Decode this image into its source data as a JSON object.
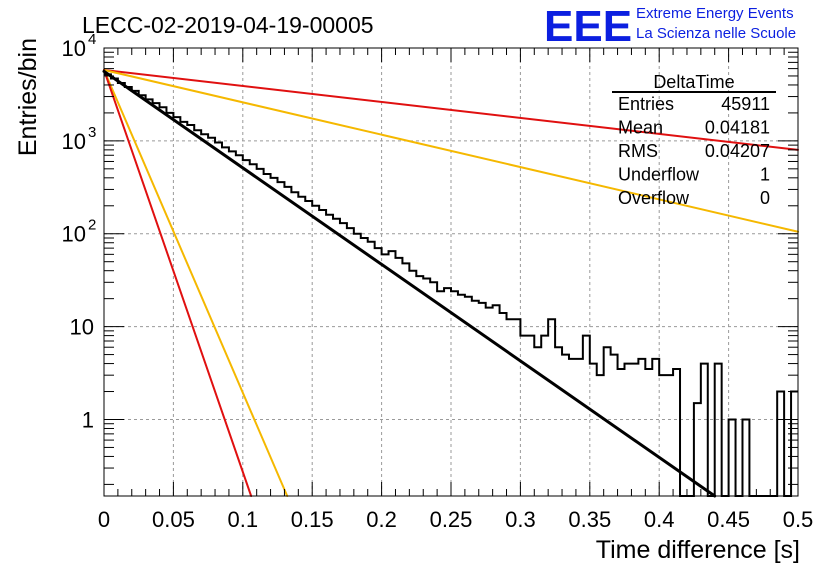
{
  "header": {
    "run_title": "LECC-02-2019-04-19-00005",
    "logo_letters": "EEE",
    "logo_line1": "Extreme Energy Events",
    "logo_line2": "La Scienza nelle Scuole",
    "logo_color": "#0b1fe0"
  },
  "stats": {
    "title": "DeltaTime",
    "rows": [
      {
        "label": "Entries",
        "value": "45911"
      },
      {
        "label": "Mean",
        "value": "0.04181"
      },
      {
        "label": "RMS",
        "value": "0.04207"
      },
      {
        "label": "Underflow",
        "value": "1"
      },
      {
        "label": "Overflow",
        "value": "0"
      }
    ]
  },
  "chart_data": {
    "type": "line",
    "xlabel": "Time difference [s]",
    "ylabel": "Entries/bin",
    "xlim": [
      0,
      0.5
    ],
    "ylim": [
      0.15,
      10000
    ],
    "yscale": "log",
    "grid": true,
    "x_ticks": [
      "0",
      "0.05",
      "0.1",
      "0.15",
      "0.2",
      "0.25",
      "0.3",
      "0.35",
      "0.4",
      "0.45",
      "0.5"
    ],
    "y_ticks": [
      {
        "value": 1,
        "label": "1"
      },
      {
        "value": 10,
        "label": "10"
      },
      {
        "value": 100,
        "label": "10",
        "exp": "2"
      },
      {
        "value": 1000,
        "label": "10",
        "exp": "3"
      },
      {
        "value": 10000,
        "label": "10",
        "exp": "4"
      }
    ],
    "histogram": {
      "color": "#000000",
      "bin_width": 0.005,
      "values": [
        5200,
        4700,
        4200,
        3800,
        3450,
        3100,
        2800,
        2550,
        2300,
        2000,
        1800,
        1600,
        1480,
        1300,
        1180,
        1080,
        960,
        850,
        770,
        700,
        620,
        560,
        500,
        440,
        400,
        360,
        320,
        280,
        250,
        225,
        200,
        180,
        160,
        145,
        130,
        115,
        100,
        90,
        82,
        70,
        60,
        65,
        55,
        48,
        40,
        35,
        33,
        30,
        24,
        26,
        24,
        22,
        21,
        19,
        18,
        16,
        17,
        14,
        12,
        12,
        8,
        8,
        6,
        8,
        12,
        6,
        5,
        4.5,
        4.5,
        8,
        4,
        3,
        6,
        5,
        3.5,
        4,
        4,
        4.5,
        3.5,
        4.5,
        3,
        3,
        3.5,
        4,
        1.5,
        1.5,
        4,
        1,
        4,
        1,
        1,
        1,
        1,
        2,
        1,
        1,
        1,
        2,
        1,
        2
      ],
      "empty_bins": [
        83,
        84,
        87,
        89,
        91,
        93,
        94,
        95,
        96,
        98
      ]
    },
    "series": [
      {
        "color": "#000000",
        "y0": 5600,
        "y_at_0.44": 0.15
      },
      {
        "color": "#e01010",
        "y0": 5800,
        "y_at_0.5": 800
      },
      {
        "color": "#f5b800",
        "y0": 5800,
        "y_at_0.5": 105
      },
      {
        "color": "#f5b800",
        "y0": 5800,
        "y_at_0.132": 0.15
      },
      {
        "color": "#e01010",
        "y0": 5800,
        "y_at_0.106": 0.15
      }
    ]
  }
}
